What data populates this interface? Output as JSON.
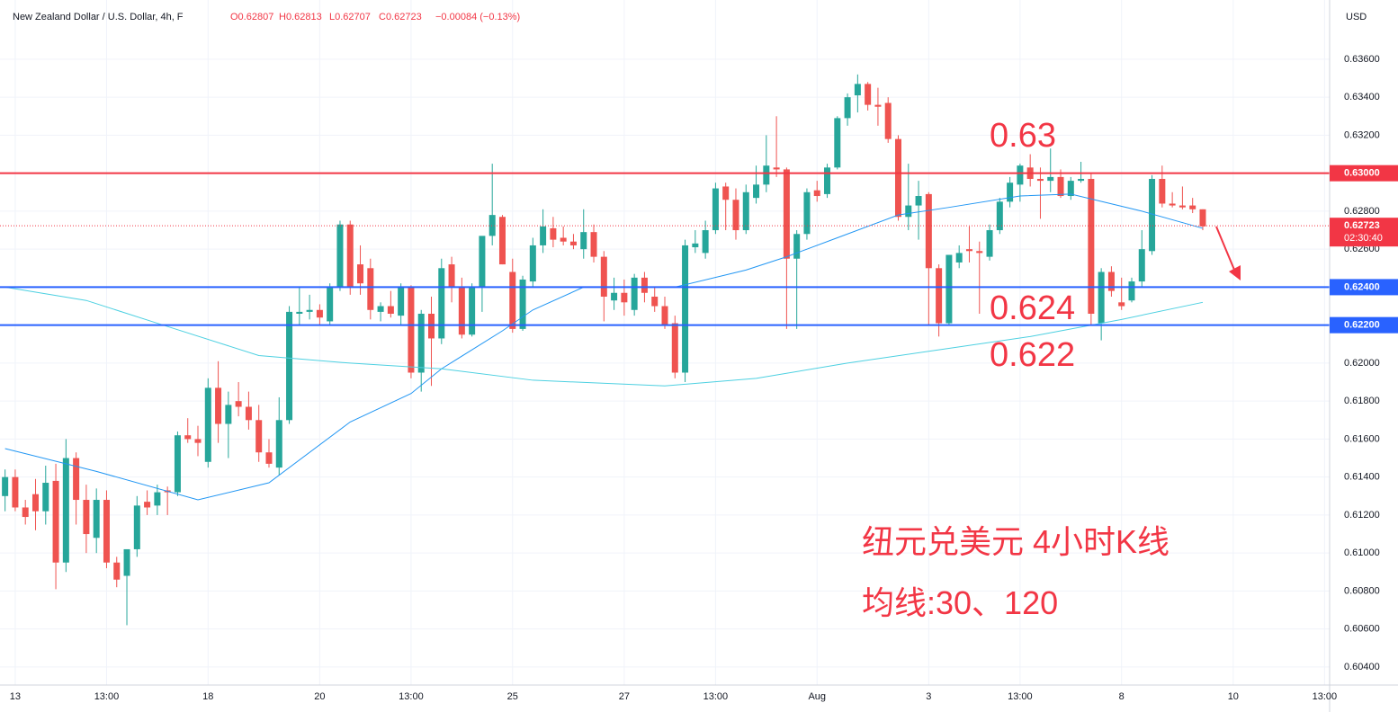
{
  "chart_data": {
    "type": "candlestick",
    "title": "New Zealand Dollar / U.S. Dollar, 4h, F",
    "header_values": [
      "O0.62807",
      "H0.62813",
      "L0.62707",
      "C0.62723",
      "−0.00084 (−0.13%)"
    ],
    "currency": "USD",
    "up_color": "#26a69a",
    "down_color": "#ef5350",
    "open": [
      0.613,
      0.614,
      0.6124,
      0.6131,
      0.6122,
      0.6138,
      0.6095,
      0.615,
      0.6128,
      0.6108,
      0.6128,
      0.6095,
      0.6088,
      0.6102,
      0.6127,
      0.6125,
      0.6133,
      0.6132,
      0.6162,
      0.616,
      0.6148,
      0.6187,
      0.6168,
      0.618,
      0.6177,
      0.617,
      0.6153,
      0.6145,
      0.617,
      0.6226,
      0.6227,
      0.6228,
      0.6222,
      0.624,
      0.6273,
      0.6252,
      0.625,
      0.6227,
      0.623,
      0.6225,
      0.624,
      0.6195,
      0.6226,
      0.6213,
      0.6252,
      0.624,
      0.6215,
      0.624,
      0.6267,
      0.6277,
      0.6248,
      0.6218,
      0.6243,
      0.6262,
      0.6271,
      0.6266,
      0.6264,
      0.626,
      0.6269,
      0.6256,
      0.6233,
      0.6237,
      0.6228,
      0.6245,
      0.6235,
      0.623,
      0.6221,
      0.6195,
      0.6261,
      0.6258,
      0.627,
      0.6293,
      0.6286,
      0.627,
      0.6287,
      0.6294,
      0.6303,
      0.6302,
      0.6255,
      0.6268,
      0.6291,
      0.6289,
      0.6303,
      0.6329,
      0.6341,
      0.6347,
      0.6336,
      0.6337,
      0.6318,
      0.6277,
      0.6283,
      0.6289,
      0.625,
      0.6221,
      0.6253,
      0.626,
      0.6259,
      0.6256,
      0.627,
      0.6285,
      0.6294,
      0.6303,
      0.6297,
      0.6296,
      0.6298,
      0.6288,
      0.6296,
      0.6297,
      0.6221,
      0.6248,
      0.6232,
      0.6233,
      0.6243,
      0.6259,
      0.6297,
      0.6284,
      0.6283,
      0.6283,
      0.6281
    ],
    "high": [
      0.6144,
      0.6144,
      0.6128,
      0.6139,
      0.6146,
      0.6147,
      0.616,
      0.6153,
      0.6136,
      0.6134,
      0.6133,
      0.6098,
      0.61,
      0.613,
      0.6133,
      0.6136,
      0.6135,
      0.6164,
      0.6171,
      0.6167,
      0.6192,
      0.6201,
      0.6185,
      0.619,
      0.6185,
      0.6178,
      0.616,
      0.6182,
      0.623,
      0.624,
      0.6236,
      0.6231,
      0.6242,
      0.6275,
      0.6275,
      0.6262,
      0.6255,
      0.6232,
      0.6238,
      0.6242,
      0.6241,
      0.6228,
      0.6235,
      0.6255,
      0.6256,
      0.6245,
      0.6242,
      0.6266,
      0.6305,
      0.6278,
      0.6255,
      0.6246,
      0.6266,
      0.6281,
      0.6277,
      0.6272,
      0.6268,
      0.6281,
      0.6273,
      0.6259,
      0.6245,
      0.6244,
      0.6247,
      0.6248,
      0.624,
      0.6235,
      0.6225,
      0.6265,
      0.627,
      0.6275,
      0.6295,
      0.6295,
      0.6292,
      0.6294,
      0.6304,
      0.632,
      0.633,
      0.6303,
      0.627,
      0.6292,
      0.6296,
      0.6305,
      0.633,
      0.6342,
      0.6352,
      0.6348,
      0.6345,
      0.634,
      0.632,
      0.6305,
      0.6296,
      0.629,
      0.6252,
      0.6257,
      0.6262,
      0.6272,
      0.6264,
      0.6273,
      0.6287,
      0.6298,
      0.6305,
      0.631,
      0.6303,
      0.6313,
      0.6302,
      0.6298,
      0.6306,
      0.63,
      0.625,
      0.6251,
      0.6245,
      0.6245,
      0.627,
      0.6299,
      0.6304,
      0.629,
      0.6293,
      0.6287,
      0.6281
    ],
    "low": [
      0.6122,
      0.6122,
      0.6115,
      0.6112,
      0.6115,
      0.6081,
      0.609,
      0.6115,
      0.61,
      0.61,
      0.6092,
      0.6082,
      0.6062,
      0.6098,
      0.612,
      0.612,
      0.612,
      0.613,
      0.6158,
      0.6151,
      0.6145,
      0.6158,
      0.615,
      0.6172,
      0.6165,
      0.6148,
      0.6145,
      0.6141,
      0.6168,
      0.622,
      0.6223,
      0.622,
      0.622,
      0.6238,
      0.6236,
      0.6236,
      0.6223,
      0.6222,
      0.6224,
      0.622,
      0.6192,
      0.6185,
      0.6188,
      0.621,
      0.6232,
      0.6213,
      0.6214,
      0.6227,
      0.6262,
      0.6252,
      0.6216,
      0.6217,
      0.624,
      0.6258,
      0.6261,
      0.6262,
      0.626,
      0.6255,
      0.6253,
      0.6222,
      0.6228,
      0.6225,
      0.6225,
      0.6232,
      0.6227,
      0.6218,
      0.6192,
      0.619,
      0.6258,
      0.6255,
      0.6268,
      0.627,
      0.6265,
      0.6268,
      0.6284,
      0.629,
      0.6298,
      0.6218,
      0.6218,
      0.6265,
      0.6285,
      0.6287,
      0.6302,
      0.6325,
      0.6332,
      0.6333,
      0.6325,
      0.6316,
      0.6275,
      0.627,
      0.6265,
      0.622,
      0.6214,
      0.622,
      0.625,
      0.6253,
      0.6226,
      0.6254,
      0.6268,
      0.6282,
      0.6285,
      0.6293,
      0.6276,
      0.629,
      0.6287,
      0.6286,
      0.6295,
      0.622,
      0.6212,
      0.6235,
      0.6228,
      0.6232,
      0.624,
      0.6257,
      0.6282,
      0.6282,
      0.6281,
      0.6279,
      0.627
    ],
    "close": [
      0.614,
      0.6124,
      0.6119,
      0.6122,
      0.6137,
      0.6095,
      0.615,
      0.6128,
      0.611,
      0.6128,
      0.6095,
      0.6086,
      0.6102,
      0.6125,
      0.6124,
      0.6132,
      0.6132,
      0.6162,
      0.616,
      0.6158,
      0.6187,
      0.6168,
      0.6178,
      0.6177,
      0.617,
      0.6153,
      0.6147,
      0.617,
      0.6227,
      0.6227,
      0.6228,
      0.6224,
      0.624,
      0.6273,
      0.624,
      0.6242,
      0.6228,
      0.623,
      0.6226,
      0.624,
      0.6195,
      0.6226,
      0.6213,
      0.625,
      0.624,
      0.6215,
      0.624,
      0.6267,
      0.6278,
      0.6252,
      0.6218,
      0.6244,
      0.6262,
      0.6272,
      0.6265,
      0.6264,
      0.6262,
      0.6269,
      0.6256,
      0.6235,
      0.6237,
      0.6232,
      0.6245,
      0.6237,
      0.623,
      0.622,
      0.6195,
      0.6262,
      0.6263,
      0.627,
      0.6292,
      0.6286,
      0.627,
      0.629,
      0.6294,
      0.6304,
      0.6302,
      0.6255,
      0.6268,
      0.629,
      0.6288,
      0.6303,
      0.6329,
      0.634,
      0.6347,
      0.6336,
      0.6335,
      0.6318,
      0.6277,
      0.6283,
      0.6288,
      0.625,
      0.6221,
      0.6257,
      0.6258,
      0.6259,
      0.6258,
      0.627,
      0.6285,
      0.6295,
      0.6304,
      0.6297,
      0.6296,
      0.6298,
      0.6288,
      0.6296,
      0.6297,
      0.6226,
      0.6248,
      0.6238,
      0.623,
      0.6243,
      0.626,
      0.6297,
      0.6284,
      0.6283,
      0.6282,
      0.6281,
      0.6272
    ],
    "series": [
      {
        "color": "#2196f3",
        "x": [
          0,
          9,
          19,
          26,
          34,
          40,
          43,
          49,
          52,
          57,
          66,
          73,
          77,
          82,
          88,
          93,
          100,
          105,
          112,
          118
        ],
        "values": [
          0.6155,
          0.6143,
          0.6128,
          0.6137,
          0.6169,
          0.6184,
          0.6197,
          0.6217,
          0.6228,
          0.624,
          0.624,
          0.6249,
          0.6256,
          0.6266,
          0.6278,
          0.6282,
          0.6288,
          0.6289,
          0.628,
          0.6271
        ]
      },
      {
        "color": "#4dd0e1",
        "x": [
          0,
          8,
          15,
          25,
          34,
          43,
          52,
          65,
          74,
          83,
          92,
          101,
          110,
          118
        ],
        "values": [
          0.624,
          0.6233,
          0.6221,
          0.6204,
          0.62,
          0.6197,
          0.6191,
          0.6188,
          0.6192,
          0.62,
          0.6207,
          0.6214,
          0.6223,
          0.6232
        ]
      }
    ],
    "levels": [
      {
        "value": 0.63,
        "label": "0.63000",
        "color": "#f23645"
      },
      {
        "value": 0.624,
        "label": "0.62400",
        "color": "#2962ff"
      },
      {
        "value": 0.622,
        "label": "0.62200",
        "color": "#2962ff"
      }
    ],
    "last_price": {
      "value": 0.62723,
      "label": "0.62723",
      "countdown": "02:30:40",
      "color": "#f23645"
    },
    "annotations": [
      "0.63",
      "0.624",
      "0.622",
      "纽元兑美元 4小时K线",
      "均线:30、120"
    ],
    "xlim": [
      -0.5,
      130.5
    ],
    "xticks": [
      {
        "value": 1,
        "label": "13"
      },
      {
        "value": 10,
        "label": "13:00"
      },
      {
        "value": 20,
        "label": "18"
      },
      {
        "value": 31,
        "label": "20"
      },
      {
        "value": 40,
        "label": "13:00"
      },
      {
        "value": 50,
        "label": "25"
      },
      {
        "value": 61,
        "label": "27"
      },
      {
        "value": 70,
        "label": "13:00"
      },
      {
        "value": 80,
        "label": "Aug"
      },
      {
        "value": 91,
        "label": "3"
      },
      {
        "value": 100,
        "label": "13:00"
      },
      {
        "value": 110,
        "label": "8"
      },
      {
        "value": 121,
        "label": "10"
      },
      {
        "value": 130,
        "label": "13:00"
      }
    ],
    "ylim": [
      0.60305,
      0.63912
    ],
    "yticks": [
      {
        "value": 0.604,
        "label": "0.60400"
      },
      {
        "value": 0.606,
        "label": "0.60600"
      },
      {
        "value": 0.608,
        "label": "0.60800"
      },
      {
        "value": 0.61,
        "label": "0.61000"
      },
      {
        "value": 0.612,
        "label": "0.61200"
      },
      {
        "value": 0.614,
        "label": "0.61400"
      },
      {
        "value": 0.616,
        "label": "0.61600"
      },
      {
        "value": 0.618,
        "label": "0.61800"
      },
      {
        "value": 0.62,
        "label": "0.62000"
      },
      {
        "value": 0.622,
        "label": "0.62200"
      },
      {
        "value": 0.624,
        "label": "0.62400"
      },
      {
        "value": 0.626,
        "label": "0.62600"
      },
      {
        "value": 0.628,
        "label": "0.62800"
      },
      {
        "value": 0.63,
        "label": "0.63000"
      },
      {
        "value": 0.632,
        "label": "0.63200"
      },
      {
        "value": 0.634,
        "label": "0.63400"
      },
      {
        "value": 0.636,
        "label": "0.63600"
      }
    ],
    "grid": true
  }
}
